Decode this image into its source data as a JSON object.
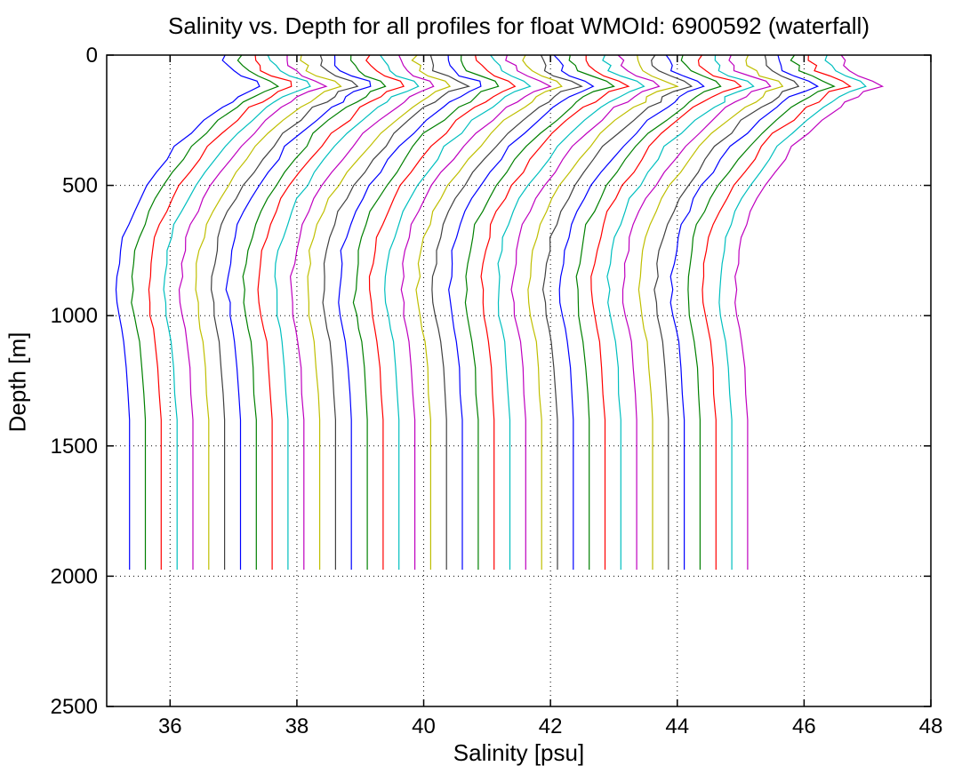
{
  "chart_data": {
    "type": "line",
    "title": "Salinity vs. Depth for all profiles for float WMOId: 6900592 (waterfall)",
    "xlabel": "Salinity [psu]",
    "ylabel": "Depth [m]",
    "xlim": [
      35,
      48
    ],
    "ylim": [
      0,
      2500
    ],
    "y_reversed": true,
    "grid": true,
    "xticks": [
      36,
      38,
      40,
      42,
      44,
      46,
      48
    ],
    "yticks": [
      0,
      500,
      1000,
      1500,
      2000,
      2500
    ],
    "color_cycle": [
      "#0000ff",
      "#008000",
      "#ff0000",
      "#00bfbf",
      "#bf00bf",
      "#bfbf00",
      "#404040"
    ],
    "waterfall_offset_psu": 0.25,
    "profile_count": 40,
    "base_profile": {
      "depth": [
        0,
        20,
        40,
        60,
        80,
        100,
        120,
        140,
        160,
        180,
        200,
        250,
        300,
        350,
        400,
        450,
        500,
        550,
        600,
        650,
        700,
        750,
        800,
        850,
        900,
        950,
        1000,
        1050,
        1100,
        1200,
        1300,
        1400,
        1500,
        1600,
        1700,
        1800,
        1900,
        1975
      ],
      "salinity": [
        36.85,
        36.85,
        36.9,
        36.95,
        37.1,
        37.35,
        37.45,
        37.2,
        37.05,
        36.95,
        36.8,
        36.55,
        36.3,
        36.1,
        35.95,
        35.8,
        35.65,
        35.52,
        35.42,
        35.33,
        35.27,
        35.22,
        35.19,
        35.17,
        35.16,
        35.17,
        35.19,
        35.23,
        35.27,
        35.31,
        35.33,
        35.35,
        35.36,
        35.36,
        35.36,
        35.36,
        35.36,
        35.36
      ]
    }
  }
}
